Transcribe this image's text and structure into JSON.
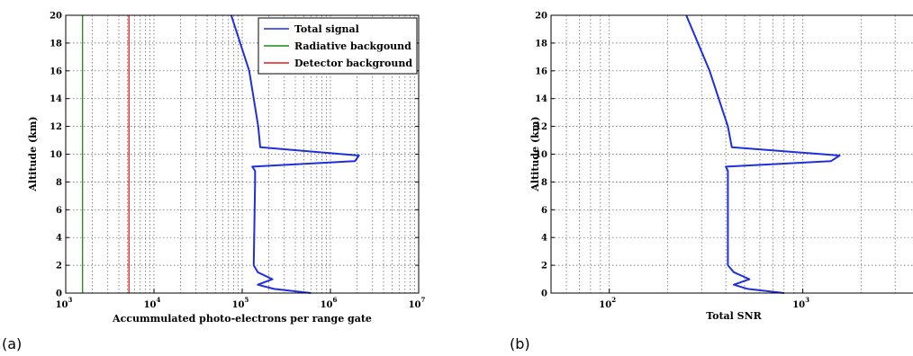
{
  "chart_data": [
    {
      "type": "line",
      "panel_label": "(a)",
      "xlabel": "Accummulated photo-electrons per range gate",
      "ylabel": "Altitude (km)",
      "xscale": "log",
      "xlim": [
        1000,
        10000000
      ],
      "ylim": [
        0,
        20
      ],
      "x_ticks": [
        1000,
        10000,
        100000,
        1000000,
        10000000
      ],
      "x_tick_labels": [
        [
          "10",
          "3"
        ],
        [
          "10",
          "4"
        ],
        [
          "10",
          "5"
        ],
        [
          "10",
          "6"
        ],
        [
          "10",
          "7"
        ]
      ],
      "y_ticks": [
        0,
        2,
        4,
        6,
        8,
        10,
        12,
        14,
        16,
        18,
        20
      ],
      "y_tick_labels": [
        "0",
        "2",
        "4",
        "6",
        "8",
        "10",
        "12",
        "14",
        "16",
        "18",
        "20"
      ],
      "grid": true,
      "legend_position": "top-right",
      "series": [
        {
          "name": "Total signal",
          "color": "#1f2fdc",
          "x": [
            600000,
            230000,
            150000,
            220000,
            150000,
            135000,
            140000,
            140000,
            130000,
            1900000,
            2100000,
            160000,
            152000,
            120000,
            75000
          ],
          "y": [
            0,
            0.3,
            0.6,
            1.0,
            1.5,
            2.0,
            8.0,
            8.8,
            9.1,
            9.5,
            9.9,
            10.5,
            12.0,
            16.0,
            20.0
          ]
        },
        {
          "name": "Radiative backgound",
          "color": "#1a8a1a",
          "x": [
            1550,
            1550
          ],
          "y": [
            0,
            20
          ]
        },
        {
          "name": "Detector background",
          "color": "#e01a1a",
          "x": [
            5200,
            5200
          ],
          "y": [
            0,
            20
          ]
        }
      ]
    },
    {
      "type": "line",
      "panel_label": "(b)",
      "xlabel": "Total SNR",
      "ylabel": "Altitude (km)",
      "xscale": "log",
      "xlim": [
        50,
        4500
      ],
      "ylim": [
        0,
        20
      ],
      "x_ticks": [
        100,
        1000
      ],
      "x_tick_labels": [
        [
          "10",
          "2"
        ],
        [
          "10",
          "3"
        ]
      ],
      "y_ticks": [
        0,
        2,
        4,
        6,
        8,
        10,
        12,
        14,
        16,
        18,
        20
      ],
      "y_tick_labels": [
        "0",
        "2",
        "4",
        "6",
        "8",
        "10",
        "12",
        "14",
        "16",
        "18",
        "20"
      ],
      "grid": true,
      "series": [
        {
          "name": "",
          "color": "#1f2fdc",
          "x": [
            800,
            520,
            440,
            530,
            440,
            410,
            410,
            410,
            400,
            1400,
            1550,
            430,
            410,
            330,
            250
          ],
          "y": [
            0,
            0.3,
            0.6,
            1.0,
            1.5,
            2.0,
            8.0,
            8.8,
            9.1,
            9.5,
            9.9,
            10.5,
            12.0,
            16.0,
            20.0
          ]
        }
      ]
    }
  ]
}
